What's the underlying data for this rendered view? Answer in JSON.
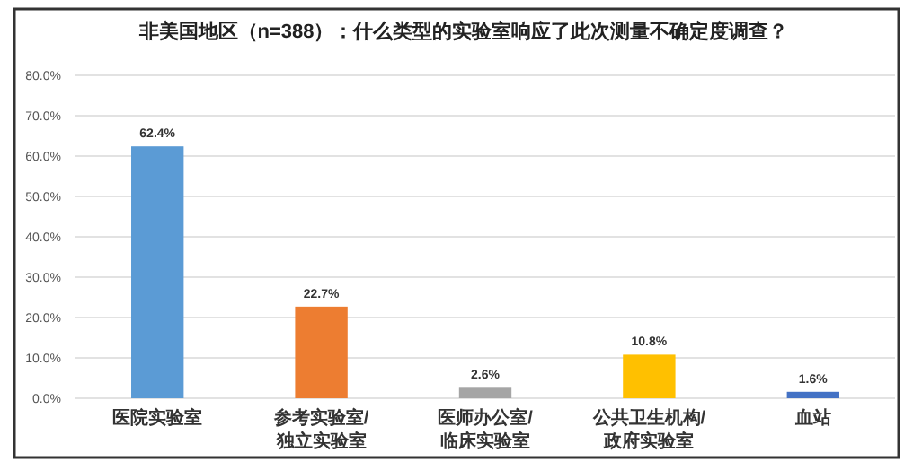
{
  "chart_data": {
    "type": "bar",
    "title": "非美国地区（n=388）：什么类型的实验室响应了此次测量不确定度调查？",
    "categories": [
      "医院实验室",
      "参考实验室/\n独立实验室",
      "医师办公室/\n临床实验室",
      "公共卫生机构/\n政府实验室",
      "血站"
    ],
    "values": [
      62.4,
      22.7,
      2.6,
      10.8,
      1.6
    ],
    "colors": [
      "#5b9bd5",
      "#ed7d31",
      "#a5a5a5",
      "#ffc000",
      "#4472c4"
    ],
    "value_labels": [
      "62.4%",
      "22.7%",
      "2.6%",
      "10.8%",
      "1.6%"
    ],
    "ylim": [
      0,
      80
    ],
    "yticks": [
      {
        "value": 0,
        "label": "0.0%"
      },
      {
        "value": 10,
        "label": "10.0%"
      },
      {
        "value": 20,
        "label": "20.0%"
      },
      {
        "value": 30,
        "label": "30.0%"
      },
      {
        "value": 40,
        "label": "40.0%"
      },
      {
        "value": 50,
        "label": "50.0%"
      },
      {
        "value": 60,
        "label": "60.0%"
      },
      {
        "value": 70,
        "label": "70.0%"
      },
      {
        "value": 80,
        "label": "80.0%"
      }
    ],
    "grid": "y"
  }
}
